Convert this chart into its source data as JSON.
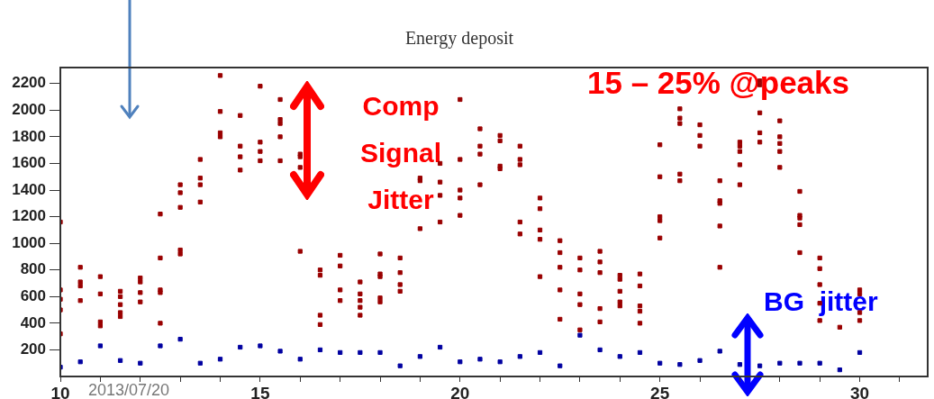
{
  "chart_data": {
    "type": "scatter",
    "title": "Energy deposit",
    "xlim": [
      10,
      31.7
    ],
    "xticks": [
      10,
      {
        "value": 11,
        "label": null
      },
      {
        "value": 12,
        "label": null
      },
      {
        "value": 13,
        "label": null
      },
      {
        "value": 14,
        "label": null
      },
      15,
      {
        "value": 16,
        "label": null
      },
      {
        "value": 17,
        "label": null
      },
      {
        "value": 18,
        "label": null
      },
      {
        "value": 19,
        "label": null
      },
      20,
      {
        "value": 21,
        "label": null
      },
      {
        "value": 22,
        "label": null
      },
      {
        "value": 23,
        "label": null
      },
      {
        "value": 24,
        "label": null
      },
      25,
      {
        "value": 26,
        "label": null
      },
      {
        "value": 27,
        "label": null
      },
      {
        "value": 28,
        "label": null
      },
      {
        "value": 29,
        "label": null
      },
      30,
      {
        "value": 31,
        "label": null
      }
    ],
    "ylim": [
      0,
      2320
    ],
    "yticks": [
      200,
      400,
      600,
      800,
      1000,
      1200,
      1400,
      1600,
      1800,
      2000,
      2200
    ],
    "grid": false,
    "legend": false,
    "marker": "square",
    "annotations": [
      "Comp Signal Jitter",
      "15 – 25% @peaks",
      "BG  jitter",
      "2013/07/20"
    ],
    "series": [
      {
        "color": "#990000",
        "x": [
          10,
          10,
          10,
          10,
          10,
          10.5,
          10.5,
          10.5,
          10.5,
          11,
          11,
          11,
          11,
          11.5,
          11.5,
          11.5,
          11.5,
          11.5,
          12,
          12,
          12,
          12,
          12.5,
          12.5,
          12.5,
          12.5,
          12.5,
          13,
          13,
          13,
          13,
          13,
          13.5,
          13.5,
          13.5,
          13.5,
          14,
          14,
          14,
          14,
          14.5,
          14.5,
          14.5,
          14.5,
          15,
          15,
          15,
          15,
          15.5,
          15.5,
          15.5,
          15.5,
          15.5,
          16,
          16,
          16,
          16,
          16.5,
          16.5,
          16.5,
          16.5,
          17,
          17,
          17,
          17,
          17.5,
          17.5,
          17.5,
          17.5,
          17.5,
          18,
          18,
          18,
          18,
          18,
          18.5,
          18.5,
          18.5,
          18.5,
          19,
          19,
          19,
          19.5,
          19.5,
          19.5,
          19.5,
          20,
          20,
          20,
          20,
          20,
          20.5,
          20.5,
          20.5,
          20.5,
          21,
          21,
          21,
          21,
          21.5,
          21.5,
          21.5,
          21.5,
          21.5,
          22,
          22,
          22,
          22,
          22,
          22.5,
          22.5,
          22.5,
          22.5,
          22.5,
          23,
          23,
          23,
          23,
          23,
          23.5,
          23.5,
          23.5,
          23.5,
          23.5,
          24,
          24,
          24,
          24,
          24,
          24.5,
          24.5,
          24.5,
          24.5,
          24.5,
          25,
          25,
          25,
          25,
          25,
          25.5,
          25.5,
          25.5,
          25.5,
          25.5,
          26,
          26,
          26,
          26.5,
          26.5,
          26.5,
          26.5,
          26.5,
          27,
          27,
          27,
          27,
          27,
          27.5,
          27.5,
          27.5,
          27.5,
          27.5,
          28,
          28,
          28,
          28,
          28,
          28.5,
          28.5,
          28.5,
          28.5,
          28.5,
          29,
          29,
          29,
          29,
          29,
          29.5,
          30,
          30,
          30,
          30
        ],
        "values": [
          1160,
          650,
          580,
          500,
          320,
          820,
          710,
          680,
          570,
          750,
          620,
          410,
          380,
          640,
          600,
          540,
          480,
          450,
          740,
          710,
          630,
          560,
          1220,
          890,
          650,
          630,
          400,
          1440,
          1380,
          1270,
          950,
          920,
          1630,
          1490,
          1440,
          1310,
          2260,
          1990,
          1830,
          1800,
          1960,
          1730,
          1650,
          1550,
          2180,
          1760,
          1690,
          1620,
          2080,
          1930,
          1900,
          1800,
          1620,
          1670,
          1650,
          1570,
          940,
          800,
          760,
          460,
          390,
          910,
          830,
          650,
          570,
          710,
          620,
          570,
          520,
          460,
          920,
          770,
          750,
          590,
          560,
          890,
          780,
          690,
          640,
          1490,
          1470,
          1110,
          1600,
          1460,
          1360,
          1160,
          2080,
          1630,
          1400,
          1340,
          1210,
          1860,
          1730,
          1670,
          1440,
          1810,
          1770,
          1580,
          1560,
          1730,
          1630,
          1590,
          1160,
          1070,
          1340,
          1260,
          1100,
          1030,
          750,
          1020,
          930,
          820,
          650,
          430,
          890,
          800,
          620,
          540,
          350,
          940,
          860,
          780,
          510,
          410,
          760,
          730,
          640,
          560,
          530,
          770,
          680,
          530,
          490,
          400,
          1740,
          1500,
          1200,
          1170,
          1040,
          2010,
          1940,
          1900,
          1520,
          1470,
          1890,
          1810,
          1730,
          1470,
          1320,
          1300,
          1130,
          820,
          1760,
          1730,
          1690,
          1590,
          1440,
          2220,
          2190,
          1980,
          1830,
          1760,
          1920,
          1800,
          1750,
          1690,
          1570,
          1390,
          1210,
          1190,
          1140,
          930,
          890,
          810,
          690,
          550,
          420,
          370,
          650,
          620,
          480,
          420
        ]
      },
      {
        "color": "#0000a0",
        "x": [
          10,
          10.5,
          11,
          11.5,
          12,
          12.5,
          13,
          13.5,
          14,
          14.5,
          15,
          15.5,
          16,
          16.5,
          17,
          17.5,
          18,
          18.5,
          19,
          19.5,
          20,
          20.5,
          21,
          21.5,
          22,
          22.5,
          23,
          23.5,
          24,
          24.5,
          25,
          25.5,
          26,
          26.5,
          27,
          27.5,
          28,
          28.5,
          29,
          29.5,
          30
        ],
        "values": [
          70,
          110,
          230,
          120,
          100,
          230,
          280,
          100,
          130,
          220,
          230,
          190,
          130,
          200,
          180,
          180,
          180,
          80,
          150,
          220,
          110,
          130,
          110,
          150,
          180,
          80,
          310,
          200,
          150,
          180,
          100,
          90,
          120,
          190,
          90,
          80,
          100,
          100,
          100,
          50,
          180
        ]
      }
    ]
  }
}
